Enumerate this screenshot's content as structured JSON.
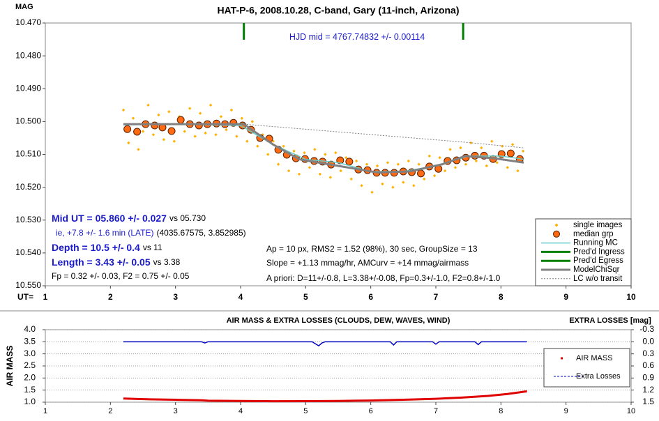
{
  "chart_data": [
    {
      "type": "scatter",
      "title": "HAT-P-6, 2008.10.28, C-band, Gary (11-inch, Arizona)",
      "y_label": "MAG",
      "x_label": "UT=",
      "xlim": [
        1,
        10
      ],
      "xticks": [
        1,
        2,
        3,
        4,
        5,
        6,
        7,
        8,
        9,
        10
      ],
      "ylim": [
        10.47,
        10.55
      ],
      "y_inverted": true,
      "yticks": [
        {
          "value": 10.47,
          "label": "10.470"
        },
        {
          "value": 10.48,
          "label": "10.480"
        },
        {
          "value": 10.49,
          "label": "10.490"
        },
        {
          "value": 10.5,
          "label": "10.500"
        },
        {
          "value": 10.51,
          "label": "10.510"
        },
        {
          "value": 10.52,
          "label": "10.520"
        },
        {
          "value": 10.53,
          "label": "10.530"
        },
        {
          "value": 10.54,
          "label": "10.540"
        },
        {
          "value": 10.55,
          "label": "10.550"
        }
      ],
      "grid": false,
      "legend": "lower right",
      "annotations": [
        "HJD mid = 4767.74832 +/- 0.00114",
        "Mid UT = 05.860 +/- 0.027",
        "vs 05.730",
        "ie, +7.8 +/- 1.6 min (LATE)",
        "(4035.67575, 3.852985)",
        "Depth = 10.5 +/- 0.4",
        "vs 11",
        "Length = 3.43 +/- 0.05",
        "vs 3.38",
        "Fp = 0.32 +/- 0.03, F2 = 0.75 +/- 0.05",
        "Ap = 10 px, RMS2 = 1.52 (98%), 30 sec, GroupSize = 13",
        "Slope = +1.13 mmag/hr, AMCurv = +14 mmag/airmass",
        "A priori: D=11+/-0.8, L=3.38+/-0.08, Fp=0.3+/-1.0, F2=0.8+/-1.0"
      ],
      "series": [
        {
          "name": "single images",
          "style": "points",
          "color": "#ffb000",
          "x": [
            2.2,
            2.28,
            2.35,
            2.43,
            2.5,
            2.58,
            2.66,
            2.74,
            2.82,
            2.9,
            2.98,
            3.06,
            3.14,
            3.22,
            3.3,
            3.38,
            3.46,
            3.54,
            3.62,
            3.7,
            3.78,
            3.86,
            3.94,
            4.02,
            4.1,
            4.18,
            4.26,
            4.34,
            4.42,
            4.5,
            4.58,
            4.66,
            4.74,
            4.82,
            4.9,
            4.98,
            5.06,
            5.14,
            5.22,
            5.3,
            5.38,
            5.46,
            5.54,
            5.62,
            5.7,
            5.78,
            5.86,
            5.94,
            6.02,
            6.1,
            6.18,
            6.26,
            6.34,
            6.42,
            6.5,
            6.58,
            6.66,
            6.74,
            6.82,
            6.9,
            6.98,
            7.06,
            7.14,
            7.22,
            7.3,
            7.38,
            7.46,
            7.54,
            7.62,
            7.7,
            7.78,
            7.86,
            7.94,
            8.02,
            8.1,
            8.18,
            8.26,
            8.34
          ],
          "values": [
            10.4965,
            10.5065,
            10.499,
            10.5085,
            10.503,
            10.495,
            10.504,
            10.498,
            10.5055,
            10.497,
            10.506,
            10.4985,
            10.503,
            10.496,
            10.5045,
            10.4975,
            10.5035,
            10.495,
            10.504,
            10.4985,
            10.5025,
            10.4965,
            10.5045,
            10.499,
            10.506,
            10.5,
            10.5075,
            10.504,
            10.51,
            10.506,
            10.513,
            10.5075,
            10.515,
            10.509,
            10.516,
            10.5095,
            10.514,
            10.5085,
            10.516,
            10.51,
            10.517,
            10.5095,
            10.515,
            10.511,
            10.5175,
            10.512,
            10.5195,
            10.513,
            10.5215,
            10.5135,
            10.519,
            10.5125,
            10.52,
            10.513,
            10.5185,
            10.512,
            10.5195,
            10.513,
            10.5175,
            10.5105,
            10.5165,
            10.511,
            10.515,
            10.5085,
            10.514,
            10.508,
            10.513,
            10.5065,
            10.512,
            10.508,
            10.5135,
            10.506,
            10.5125,
            10.5075,
            10.514,
            10.507,
            10.515,
            10.509
          ]
        },
        {
          "name": "median grp",
          "style": "circles",
          "color": "#ff6a13",
          "x": [
            2.26,
            2.41,
            2.54,
            2.68,
            2.8,
            2.94,
            3.08,
            3.22,
            3.36,
            3.49,
            3.63,
            3.76,
            3.89,
            4.03,
            4.16,
            4.3,
            4.44,
            4.58,
            4.71,
            4.85,
            4.99,
            5.13,
            5.26,
            5.39,
            5.53,
            5.67,
            5.81,
            5.95,
            6.09,
            6.22,
            6.36,
            6.5,
            6.63,
            6.77,
            6.9,
            7.04,
            7.18,
            7.32,
            7.46,
            7.6,
            7.74,
            7.88,
            8.01,
            8.15,
            8.29
          ],
          "values": [
            10.5023,
            10.5031,
            10.5008,
            10.5012,
            10.5018,
            10.5029,
            10.4995,
            10.5008,
            10.5012,
            10.5008,
            10.5006,
            10.5008,
            10.5004,
            10.5012,
            10.5025,
            10.505,
            10.5052,
            10.5086,
            10.5101,
            10.5112,
            10.5114,
            10.512,
            10.5122,
            10.5131,
            10.5118,
            10.5122,
            10.5146,
            10.5148,
            10.5156,
            10.5156,
            10.5156,
            10.5152,
            10.5154,
            10.5158,
            10.5137,
            10.5144,
            10.512,
            10.5118,
            10.511,
            10.5104,
            10.5104,
            10.5114,
            10.5099,
            10.5097,
            10.5114
          ]
        },
        {
          "name": "Running MC",
          "style": "line",
          "color": "#66cccc",
          "x": [
            2.2,
            3,
            4,
            4.5,
            5,
            5.5,
            6,
            6.5,
            7,
            7.5,
            8,
            8.35
          ],
          "values": [
            10.501,
            10.5008,
            10.5012,
            10.507,
            10.5115,
            10.5125,
            10.5152,
            10.5152,
            10.5135,
            10.5105,
            10.5105,
            10.5115
          ]
        },
        {
          "name": "Pred'd Ingress",
          "style": "vline",
          "color": "#008000",
          "x": 4.05
        },
        {
          "name": "Pred'd Egress",
          "style": "vline",
          "color": "#008000",
          "x": 7.42
        },
        {
          "name": "ModelChiSqr",
          "style": "thick",
          "color": "#808080",
          "x": [
            2.2,
            4.05,
            4.5,
            4.9,
            5.5,
            6.1,
            6.6,
            7.1,
            7.45,
            7.9,
            8.35
          ],
          "values": [
            10.5008,
            10.5008,
            10.507,
            10.5115,
            10.5135,
            10.5155,
            10.5152,
            10.513,
            10.5105,
            10.5112,
            10.5125
          ]
        },
        {
          "name": "LC w/o transit",
          "style": "dashed",
          "color": "#808080",
          "x": [
            4.05,
            7.45,
            8.35
          ],
          "values": [
            10.5008,
            10.5063,
            10.508
          ]
        }
      ]
    },
    {
      "type": "line",
      "title": "AIR MASS & EXTRA LOSSES (CLOUDS, DEW, WAVES, WIND)",
      "y_label": "AIR MASS",
      "y2_label": "EXTRA LOSSES [mag]",
      "xlim": [
        1,
        10
      ],
      "xticks": [
        1,
        2,
        3,
        4,
        5,
        6,
        7,
        8,
        9,
        10
      ],
      "ylim": [
        1,
        4
      ],
      "yticks": [
        {
          "value": 1,
          "label": "1.0"
        },
        1.5,
        {
          "value": 2,
          "label": "2.0"
        },
        2.5,
        {
          "value": 3,
          "label": "3.0"
        },
        3.5,
        {
          "value": 4,
          "label": "4.0"
        }
      ],
      "y2lim": [
        -0.3,
        1.5
      ],
      "y2_inverted": true,
      "y2ticks": [
        -0.3,
        {
          "value": 0,
          "label": "0.0"
        },
        0.3,
        0.6,
        0.9,
        1.2,
        1.5
      ],
      "grid": true,
      "legend": "right",
      "series": [
        {
          "name": "AIR MASS",
          "style": "thick",
          "color": "#e00000",
          "x": [
            2.2,
            2.6,
            3.0,
            3.4,
            3.5,
            4.0,
            4.5,
            5.0,
            5.5,
            6.0,
            6.5,
            7.0,
            7.4,
            7.8,
            8.1,
            8.4
          ],
          "values": [
            1.15,
            1.12,
            1.1,
            1.08,
            1.06,
            1.05,
            1.04,
            1.045,
            1.05,
            1.07,
            1.1,
            1.14,
            1.19,
            1.26,
            1.34,
            1.45
          ]
        },
        {
          "name": "Extra Losses",
          "style": "line",
          "color": "#0000c0",
          "axis": "y2",
          "x": [
            2.2,
            3.4,
            3.45,
            3.5,
            5.1,
            5.2,
            5.25,
            5.3,
            6.3,
            6.35,
            6.4,
            6.95,
            7.0,
            7.05,
            7.6,
            7.65,
            7.7,
            8.4
          ],
          "values": [
            0,
            0,
            0.03,
            0,
            0,
            0.1,
            0.03,
            0,
            0,
            0.08,
            0,
            0,
            0.06,
            0,
            0,
            0.07,
            0,
            0
          ]
        }
      ]
    }
  ]
}
